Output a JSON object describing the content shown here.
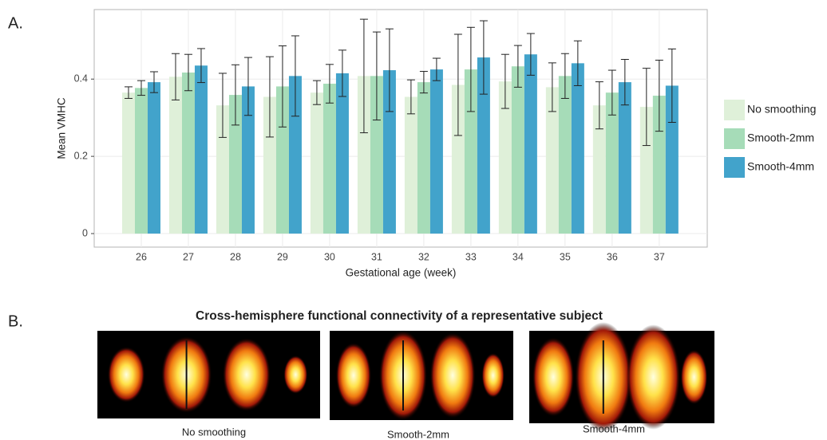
{
  "panel_a_label": "A.",
  "chart_data": {
    "type": "bar",
    "x_label": "Gestational age (week)",
    "y_label": "Mean VMHC",
    "categories": [
      "26",
      "27",
      "28",
      "29",
      "30",
      "31",
      "32",
      "33",
      "34",
      "35",
      "36",
      "37"
    ],
    "series": [
      {
        "name": "No smoothing",
        "color": "#dff0d9",
        "values": [
          0.365,
          0.406,
          0.332,
          0.354,
          0.365,
          0.408,
          0.354,
          0.385,
          0.394,
          0.379,
          0.332,
          0.328
        ],
        "errors": [
          0.015,
          0.06,
          0.083,
          0.104,
          0.031,
          0.147,
          0.044,
          0.131,
          0.07,
          0.063,
          0.061,
          0.1
        ]
      },
      {
        "name": "Smooth-2mm",
        "color": "#a6dcb8",
        "values": [
          0.377,
          0.417,
          0.359,
          0.381,
          0.388,
          0.408,
          0.392,
          0.425,
          0.433,
          0.408,
          0.365,
          0.357
        ],
        "errors": [
          0.019,
          0.047,
          0.078,
          0.105,
          0.05,
          0.114,
          0.028,
          0.109,
          0.054,
          0.058,
          0.058,
          0.092
        ]
      },
      {
        "name": "Smooth-4mm",
        "color": "#42a3cb",
        "values": [
          0.392,
          0.435,
          0.381,
          0.408,
          0.415,
          0.423,
          0.425,
          0.456,
          0.464,
          0.441,
          0.392,
          0.383
        ],
        "errors": [
          0.027,
          0.044,
          0.075,
          0.104,
          0.06,
          0.107,
          0.029,
          0.095,
          0.054,
          0.058,
          0.059,
          0.095
        ]
      }
    ],
    "ylim": [
      -0.035,
      0.58
    ],
    "yticks": [
      0,
      0.2,
      0.4
    ],
    "grid": true,
    "legend": "right"
  },
  "panel_b": {
    "label": "B.",
    "title": "Cross-hemisphere functional connectivity of a representative subject",
    "images": [
      {
        "caption": "No smoothing"
      },
      {
        "caption": "Smooth-2mm"
      },
      {
        "caption": "Smooth-4mm"
      }
    ]
  }
}
